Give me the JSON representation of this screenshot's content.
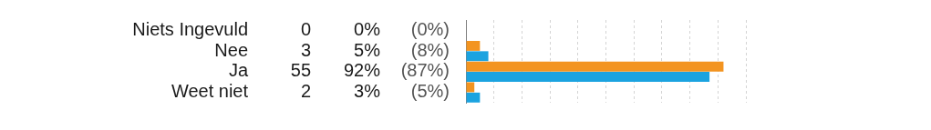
{
  "chart_data": {
    "type": "bar",
    "orientation": "horizontal",
    "categories": [
      "Niets Ingevuld",
      "Nee",
      "Ja",
      "Weet niet"
    ],
    "counts": [
      0,
      3,
      55,
      2
    ],
    "series": [
      {
        "color": "#f39420",
        "values": [
          0,
          5,
          92,
          3
        ],
        "value_labels": [
          "0%",
          "5%",
          "92%",
          "3%"
        ]
      },
      {
        "color": "#1ba3e0",
        "values": [
          0,
          8,
          87,
          5
        ],
        "value_labels": [
          "(0%)",
          "(8%)",
          "(87%)",
          "(5%)"
        ]
      }
    ],
    "xlim": [
      0,
      100
    ],
    "xticks": [
      0,
      10,
      20,
      30,
      40,
      50,
      60,
      70,
      80,
      90,
      100
    ],
    "grid": true,
    "tick_labels": false
  }
}
